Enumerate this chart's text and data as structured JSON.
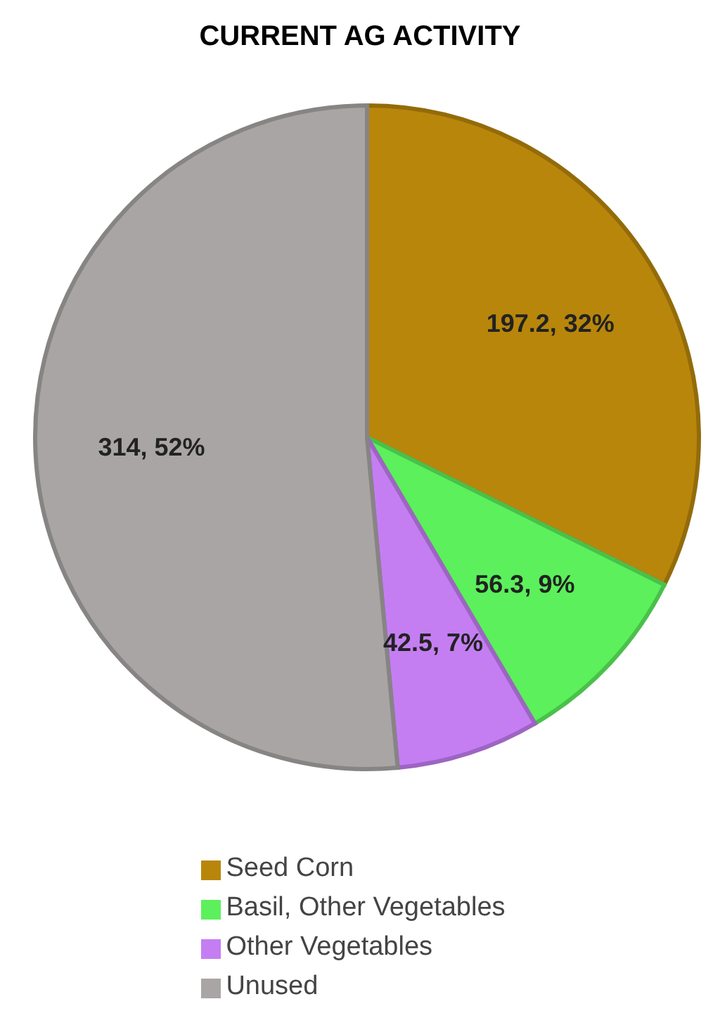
{
  "chart_data": {
    "type": "pie",
    "title": "CURRENT AG ACTIVITY",
    "categories": [
      "Seed Corn",
      "Basil, Other Vegetables",
      "Other Vegetables",
      "Unused"
    ],
    "values": [
      197.2,
      56.3,
      42.5,
      314
    ],
    "colors": [
      "#b8860b",
      "#5cf05c",
      "#c47ef2",
      "#a9a5a5"
    ],
    "value_labels": [
      "197.2, 32%",
      "56.3, 9%",
      "42.5, 7%",
      "314, 52%"
    ],
    "legend": "bottom"
  }
}
